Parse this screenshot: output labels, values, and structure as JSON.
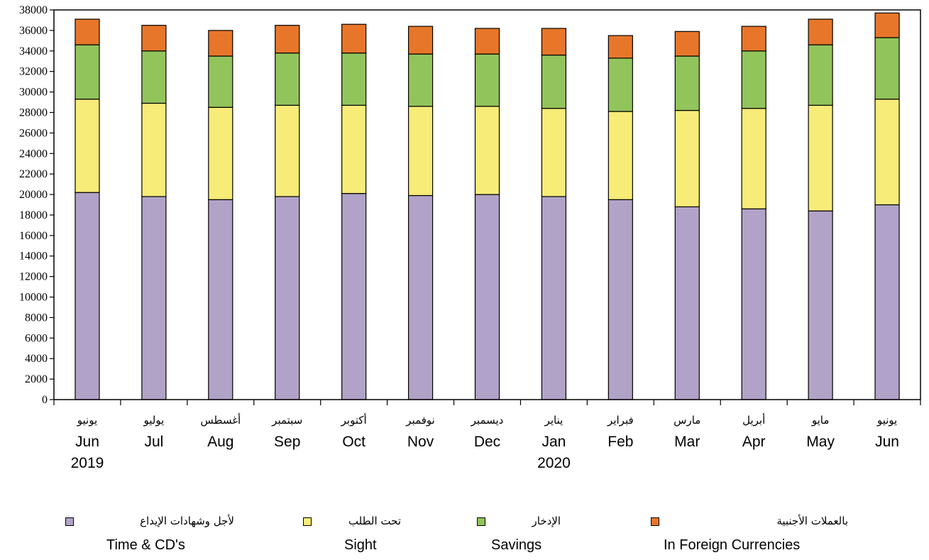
{
  "chart_data": {
    "type": "bar",
    "stacked": true,
    "categories": [
      {
        "ar": "يونيو",
        "en": "Jun",
        "year": "2019"
      },
      {
        "ar": "يوليو",
        "en": "Jul",
        "year": ""
      },
      {
        "ar": "أغسطس",
        "en": "Aug",
        "year": ""
      },
      {
        "ar": "سبتمبر",
        "en": "Sep",
        "year": ""
      },
      {
        "ar": "أكتوبر",
        "en": "Oct",
        "year": ""
      },
      {
        "ar": "نوفمبر",
        "en": "Nov",
        "year": ""
      },
      {
        "ar": "ديسمبر",
        "en": "Dec",
        "year": ""
      },
      {
        "ar": "يناير",
        "en": "Jan",
        "year": "2020"
      },
      {
        "ar": "فبراير",
        "en": "Feb",
        "year": ""
      },
      {
        "ar": "مارس",
        "en": "Mar",
        "year": ""
      },
      {
        "ar": "أبريل",
        "en": "Apr",
        "year": ""
      },
      {
        "ar": "مايو",
        "en": "May",
        "year": ""
      },
      {
        "ar": "يونيو",
        "en": "Jun",
        "year": ""
      }
    ],
    "series": [
      {
        "name": "Time & CD's",
        "name_ar": "لأجل وشهادات الإيداع",
        "color": "#b1a3c8",
        "values": [
          20200,
          19800,
          19500,
          19800,
          20100,
          19900,
          20000,
          19800,
          19500,
          18800,
          18600,
          18400,
          19000
        ]
      },
      {
        "name": "Sight",
        "name_ar": "تحت الطلب",
        "color": "#f7ec78",
        "values": [
          9100,
          9100,
          9000,
          8900,
          8600,
          8700,
          8600,
          8600,
          8600,
          9400,
          9800,
          10300,
          10300
        ]
      },
      {
        "name": "Savings",
        "name_ar": "الإدخار",
        "color": "#92c45c",
        "values": [
          5300,
          5100,
          5000,
          5100,
          5100,
          5100,
          5100,
          5200,
          5200,
          5300,
          5600,
          5900,
          6000
        ]
      },
      {
        "name": "In Foreign Currencies",
        "name_ar": "بالعملات الأجنبية",
        "color": "#e8762a",
        "values": [
          2500,
          2500,
          2500,
          2700,
          2800,
          2700,
          2500,
          2600,
          2200,
          2400,
          2400,
          2500,
          2400
        ]
      }
    ],
    "ylim": [
      0,
      38000
    ],
    "ytick_step": 2000,
    "yticks": [
      "0",
      "2000",
      "4000",
      "6000",
      "8000",
      "10000",
      "12000",
      "14000",
      "16000",
      "18000",
      "20000",
      "22000",
      "24000",
      "26000",
      "28000",
      "30000",
      "32000",
      "34000",
      "36000",
      "38000"
    ],
    "legend_position": "bottom",
    "grid": false,
    "title": "",
    "xlabel": "",
    "ylabel": ""
  }
}
